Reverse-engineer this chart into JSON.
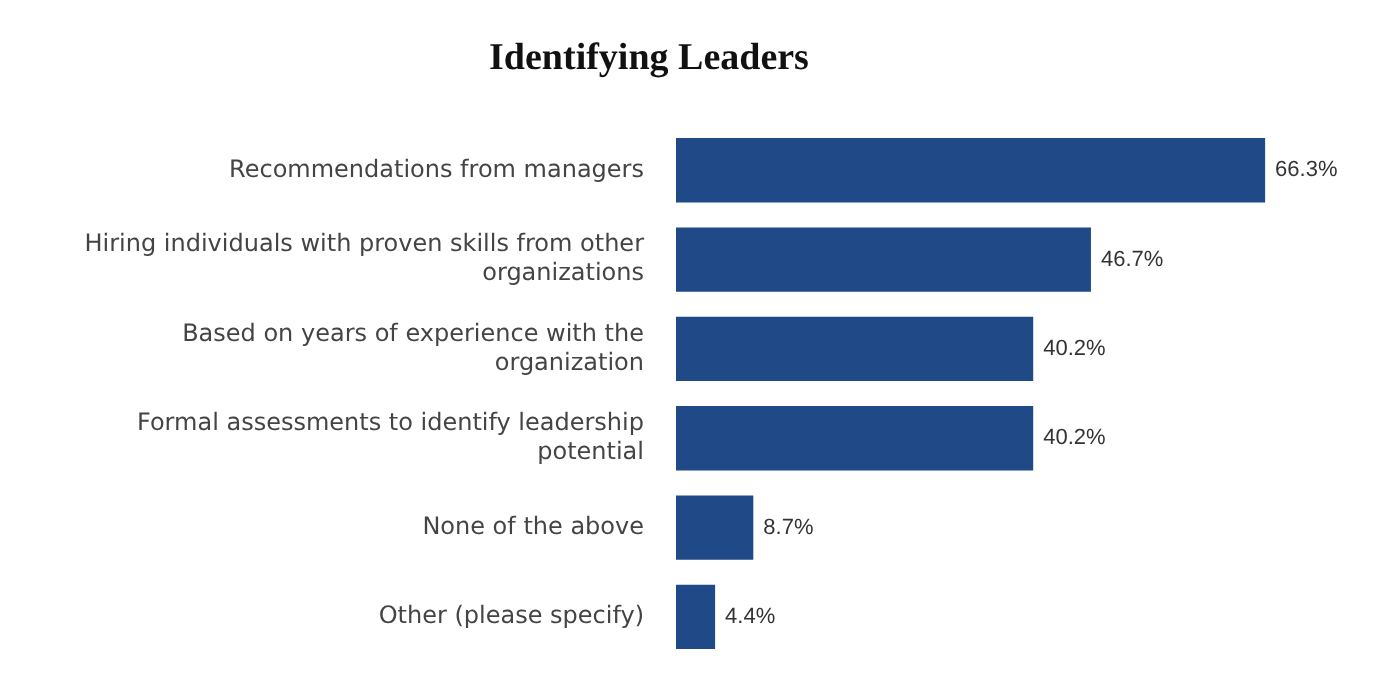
{
  "chart_data": {
    "type": "bar",
    "orientation": "horizontal",
    "title": "Identifying Leaders",
    "categories": [
      "Recommendations from managers",
      "Hiring individuals with proven skills from other organizations",
      "Based on years of experience with the organization",
      "Formal assessments to identify leadership potential",
      "None of the above",
      "Other (please specify)"
    ],
    "values": [
      66.3,
      46.7,
      40.2,
      40.2,
      8.7,
      4.4
    ],
    "value_labels": [
      "66.3%",
      "46.7%",
      "40.2%",
      "40.2%",
      "8.7%",
      "4.4%"
    ],
    "color": "#1f4a87",
    "legend": false
  }
}
